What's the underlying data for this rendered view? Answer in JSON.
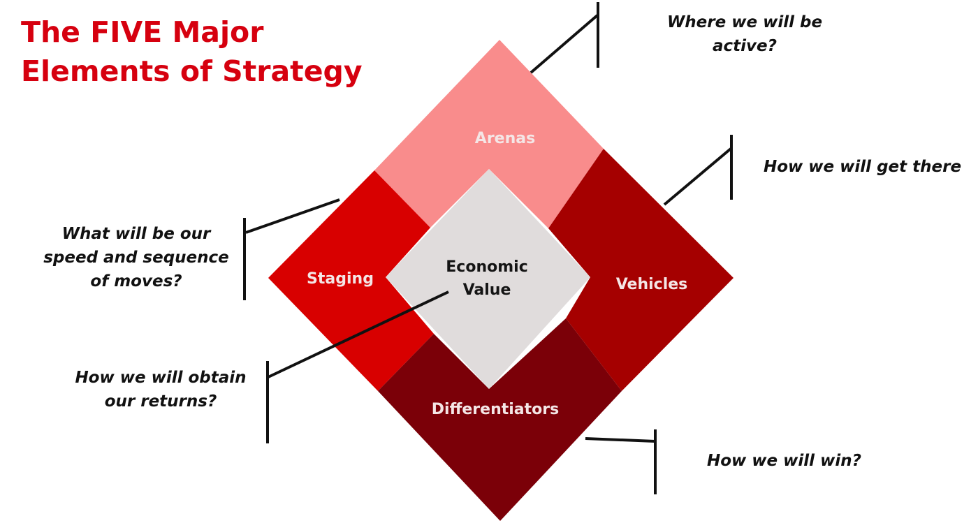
{
  "title": {
    "line1": "The FIVE Major",
    "line2": "Elements of Strategy"
  },
  "colors": {
    "title": "#d6000f",
    "arenas": "#f98c8c",
    "staging": "#d80000",
    "vehicles": "#a50000",
    "differentiators": "#7b0008",
    "economic_value": "#e0dcdc",
    "segment_label": "#f4e6e6",
    "center_label": "#141414",
    "connector": "#111111"
  },
  "segments": {
    "arenas": "Arenas",
    "staging": "Staging",
    "vehicles": "Vehicles",
    "differentiators": "Differentiators",
    "economic_value": {
      "line1": "Economic",
      "line2": "Value"
    }
  },
  "questions": {
    "arenas": {
      "line1": "Where we will be",
      "line2": "active?"
    },
    "vehicles": {
      "line1": "How we will get there"
    },
    "staging": {
      "line1": "What will be our",
      "line2": "speed and sequence",
      "line3": "of moves?"
    },
    "economic_value": {
      "line1": "How we will obtain",
      "line2": "our returns?"
    },
    "differentiators": {
      "line1": "How we will win?"
    }
  }
}
